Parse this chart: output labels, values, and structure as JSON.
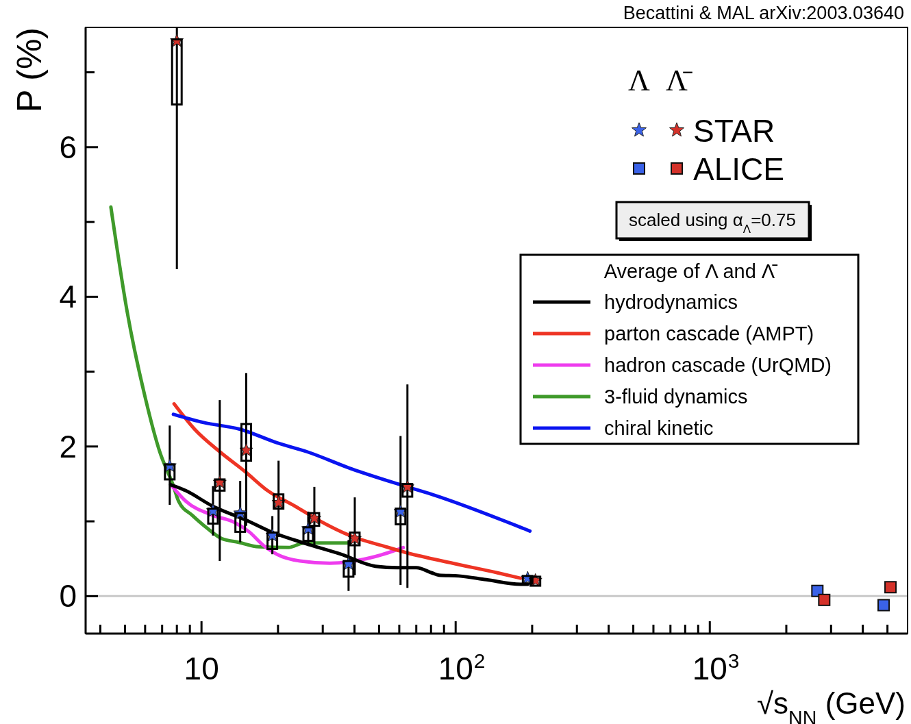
{
  "chart_data": {
    "type": "scatter",
    "ylabel": "P (%)",
    "xlabel": "√s$_{NN}$ (GeV)",
    "legend_title": "Average of Λ and Λ̄",
    "legend": "right",
    "log": "x",
    "xlim": [
      3.5,
      6000
    ],
    "ylim": [
      -0.5,
      7.6
    ],
    "xticks": [
      {
        "value": 4,
        "label": null
      },
      {
        "value": 5,
        "label": null
      },
      {
        "value": 6,
        "label": null
      },
      {
        "value": 7,
        "label": null
      },
      {
        "value": 8,
        "label": null
      },
      {
        "value": 9,
        "label": null
      },
      10,
      {
        "value": 20,
        "label": null
      },
      {
        "value": 30,
        "label": null
      },
      {
        "value": 40,
        "label": null
      },
      {
        "value": 50,
        "label": null
      },
      {
        "value": 60,
        "label": null
      },
      {
        "value": 70,
        "label": null
      },
      {
        "value": 80,
        "label": null
      },
      {
        "value": 90,
        "label": null
      },
      {
        "value": 100,
        "label": "10$^{2}$"
      },
      {
        "value": 200,
        "label": null
      },
      {
        "value": 300,
        "label": null
      },
      {
        "value": 400,
        "label": null
      },
      {
        "value": 500,
        "label": null
      },
      {
        "value": 600,
        "label": null
      },
      {
        "value": 700,
        "label": null
      },
      {
        "value": 800,
        "label": null
      },
      {
        "value": 900,
        "label": null
      },
      {
        "value": 1000,
        "label": "10$^{3}$"
      },
      {
        "value": 2000,
        "label": null
      },
      {
        "value": 3000,
        "label": null
      },
      {
        "value": 4000,
        "label": null
      },
      {
        "value": 5000,
        "label": null
      }
    ],
    "yticks": [
      0,
      {
        "value": 1,
        "label": null
      },
      2,
      {
        "value": 3,
        "label": null
      },
      4,
      {
        "value": 5,
        "label": null
      },
      6,
      {
        "value": 7,
        "label": null
      }
    ],
    "ref_lines": [
      {
        "axis": "y",
        "value": 0,
        "color": "#c8c8c8"
      }
    ],
    "annotations": [
      "Becattini & MAL arXiv:2003.03640",
      "Λ",
      "Λ̄",
      "scaled using α$_{Λ}$=0.75"
    ],
    "series": [
      {
        "type": "line",
        "name": "3-fluid dynamics",
        "color": "#3f9a2a",
        "x": [
          4.4,
          5.1,
          6.0,
          6.85,
          7.7,
          8.15,
          9.2,
          10.6,
          12,
          14,
          16.8,
          22,
          25.3,
          37.7
        ],
        "values": [
          5.2,
          3.8,
          2.66,
          1.93,
          1.5,
          1.26,
          1.08,
          0.9,
          0.77,
          0.72,
          0.66,
          0.65,
          0.71,
          0.71
        ]
      },
      {
        "type": "line",
        "name": "hadron cascade (UrQMD)",
        "color": "#ee3cee",
        "x": [
          7.66,
          8.67,
          11.1,
          13.4,
          15.4,
          17.5,
          19.8,
          24.4,
          32,
          48.3,
          62.2
        ],
        "values": [
          1.47,
          1.27,
          1.08,
          0.99,
          0.86,
          0.68,
          0.56,
          0.47,
          0.44,
          0.53,
          0.65
        ]
      },
      {
        "type": "line",
        "name": "hydrodynamics",
        "color": "#000000",
        "x": [
          7.56,
          8.67,
          11.1,
          14.9,
          19.1,
          25.3,
          35.4,
          48.3,
          59.1,
          70,
          80.8,
          86,
          103,
          132,
          180,
          192
        ],
        "values": [
          1.49,
          1.41,
          1.2,
          1.02,
          0.85,
          0.71,
          0.56,
          0.4,
          0.38,
          0.38,
          0.31,
          0.28,
          0.27,
          0.22,
          0.16,
          0.16
        ]
      },
      {
        "type": "line",
        "name": "parton cascade (AMPT)",
        "color": "#ee3424",
        "x": [
          7.8,
          9.4,
          11.8,
          14.9,
          18.2,
          23.4,
          28.7,
          39,
          52,
          64.2,
          97.3,
          147,
          180
        ],
        "values": [
          2.57,
          2.23,
          1.93,
          1.66,
          1.41,
          1.2,
          1.02,
          0.8,
          0.67,
          0.58,
          0.44,
          0.31,
          0.24
        ]
      },
      {
        "type": "line",
        "name": "chiral kinetic",
        "color": "#0a14f0",
        "x": [
          7.75,
          10.2,
          14.2,
          19.8,
          26,
          39,
          59.1,
          80.8,
          196
        ],
        "values": [
          2.43,
          2.32,
          2.23,
          2.05,
          1.93,
          1.7,
          1.5,
          1.36,
          0.87
        ]
      },
      {
        "type": "bar",
        "color": "#000000",
        "x": [
          7.5,
          11.1,
          14.2,
          19,
          26.3,
          37.9,
          60.7,
          192
        ],
        "base": [
          1.56,
          0.97,
          0.86,
          0.63,
          0.74,
          0.26,
          0.96,
          0.17
        ],
        "values": [
          0.2,
          0.2,
          0.25,
          0.22,
          0.18,
          0.21,
          0.21,
          0.1
        ]
      },
      {
        "type": "bar",
        "color": "#000000",
        "x": [
          8,
          11.8,
          15,
          20.1,
          27.8,
          40.1,
          64.6,
          206
        ],
        "base": [
          6.57,
          1.41,
          1.81,
          1.17,
          0.94,
          0.68,
          1.33,
          0.14
        ],
        "values": [
          0.87,
          0.15,
          0.49,
          0.19,
          0.17,
          0.17,
          0.17,
          0.12
        ]
      },
      {
        "marker": "star",
        "color": "#3a62e8",
        "x": [
          7.5,
          11.1,
          14.2,
          19,
          26.3,
          37.9,
          60.7,
          192
        ],
        "values": [
          1.74,
          1.14,
          1.11,
          0.81,
          0.9,
          0.43,
          1.13,
          0.24
        ],
        "errors": [
          [
            1.22,
            2.28
          ],
          [
            0.81,
            1.47
          ],
          [
            0.72,
            1.54
          ],
          [
            0.56,
            1.07
          ],
          [
            0.67,
            1.13
          ],
          [
            0.07,
            0.75
          ],
          [
            0.15,
            2.14
          ],
          null
        ]
      },
      {
        "name": "STAR",
        "marker": "star",
        "color": "#d4322a",
        "x": [
          8,
          11.8,
          15,
          20.1,
          27.8,
          40.1,
          64.6,
          206
        ],
        "values": [
          7.42,
          1.52,
          1.95,
          1.25,
          1.04,
          0.77,
          1.46,
          0.21
        ],
        "errors": [
          [
            4.37,
            7.6
          ],
          [
            0.47,
            2.62
          ],
          [
            0.94,
            2.98
          ],
          [
            0.79,
            1.81
          ],
          [
            0.67,
            1.46
          ],
          [
            0.28,
            1.32
          ],
          [
            0.11,
            2.83
          ],
          null
        ]
      },
      {
        "marker": "square",
        "color": "#3a62e8",
        "x": [
          2650,
          4830
        ],
        "values": [
          0.07,
          -0.12
        ]
      },
      {
        "name": "ALICE",
        "marker": "square",
        "color": "#d4322a",
        "x": [
          2820,
          5140
        ],
        "values": [
          -0.05,
          0.12
        ]
      }
    ]
  }
}
